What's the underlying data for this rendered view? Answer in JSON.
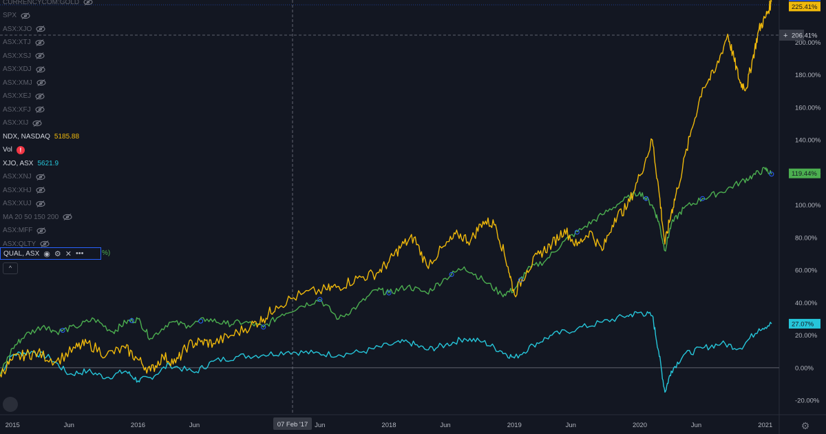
{
  "legend": {
    "rows": [
      {
        "name": "CURRENCYCOM:GOLD",
        "visible": false
      },
      {
        "name": "SPX",
        "visible": false
      },
      {
        "name": "ASX:XJO",
        "visible": false
      },
      {
        "name": "ASX:XTJ",
        "visible": false
      },
      {
        "name": "ASX:XSJ",
        "visible": false
      },
      {
        "name": "ASX:XDJ",
        "visible": false
      },
      {
        "name": "ASX:XMJ",
        "visible": false
      },
      {
        "name": "ASX:XEJ",
        "visible": false
      },
      {
        "name": "ASX:XFJ",
        "visible": false
      },
      {
        "name": "ASX:XIJ",
        "visible": false
      },
      {
        "name": "NDX, NASDAQ",
        "visible": true,
        "value": "5185.88",
        "color": "#f0b90b"
      },
      {
        "name": "Vol",
        "visible": true,
        "alert": "!"
      },
      {
        "name": "XJO, ASX",
        "visible": true,
        "value": "5621.9",
        "color": "#26c6da"
      },
      {
        "name": "ASX:XNJ",
        "visible": false
      },
      {
        "name": "ASX:XHJ",
        "visible": false
      },
      {
        "name": "ASX:XUJ",
        "visible": false
      },
      {
        "name": "MA 20 50 150 200",
        "visible": false
      },
      {
        "name": "ASX:MFF",
        "visible": false
      },
      {
        "name": "ASX:QLTY",
        "visible": false
      }
    ],
    "selected": {
      "name": "QUAL, ASX",
      "tail": "%)"
    },
    "collapse_label": "^"
  },
  "crosshair": {
    "date_label": "07 Feb '17",
    "price_label": "206.41%"
  },
  "chart_data": {
    "type": "line",
    "x_axis_labels": [
      "2015",
      "Jun",
      "2016",
      "Jun",
      "Jun",
      "2018",
      "Jun",
      "2019",
      "Jun",
      "2020",
      "Jun",
      "2021"
    ],
    "y_ticks": [
      "200.00%",
      "180.00%",
      "160.00%",
      "140.00%",
      "120.00%",
      "100.00%",
      "80.00%",
      "60.00%",
      "40.00%",
      "20.00%",
      "0.00%",
      "-20.00%"
    ],
    "ylim": [
      -28,
      226
    ],
    "xlim": [
      2014.9,
      2021.1
    ],
    "grid": false,
    "series": [
      {
        "name": "NDX, NASDAQ",
        "color": "#f0b90b",
        "last_label": "225.41%",
        "x": [
          2014.9,
          2015.0,
          2015.1,
          2015.2,
          2015.35,
          2015.5,
          2015.6,
          2015.75,
          2015.9,
          2016.0,
          2016.1,
          2016.2,
          2016.3,
          2016.4,
          2016.5,
          2016.6,
          2016.75,
          2016.9,
          2017.0,
          2017.1,
          2017.3,
          2017.5,
          2017.6,
          2017.75,
          2017.9,
          2018.0,
          2018.1,
          2018.2,
          2018.3,
          2018.45,
          2018.55,
          2018.65,
          2018.75,
          2018.85,
          2018.95,
          2019.0,
          2019.1,
          2019.2,
          2019.3,
          2019.4,
          2019.5,
          2019.6,
          2019.7,
          2019.8,
          2019.9,
          2020.0,
          2020.1,
          2020.15,
          2020.2,
          2020.25,
          2020.3,
          2020.4,
          2020.5,
          2020.6,
          2020.7,
          2020.75,
          2020.8,
          2020.85,
          2020.9,
          2020.95,
          2021.0,
          2021.05
        ],
        "values": [
          -4,
          5,
          8,
          9,
          4,
          12,
          15,
          8,
          12,
          5,
          -2,
          7,
          3,
          14,
          16,
          15,
          20,
          26,
          30,
          38,
          45,
          48,
          50,
          55,
          58,
          65,
          75,
          80,
          63,
          75,
          82,
          78,
          90,
          88,
          62,
          45,
          60,
          70,
          76,
          85,
          75,
          84,
          72,
          92,
          99,
          118,
          140,
          110,
          76,
          95,
          110,
          142,
          172,
          182,
          205,
          190,
          175,
          172,
          190,
          208,
          215,
          225
        ]
      },
      {
        "name": "QUAL, ASX",
        "color": "#4caf50",
        "last_label": "119.44%",
        "x": [
          2014.9,
          2015.0,
          2015.1,
          2015.25,
          2015.35,
          2015.5,
          2015.65,
          2015.8,
          2015.9,
          2016.0,
          2016.1,
          2016.25,
          2016.4,
          2016.55,
          2016.7,
          2016.85,
          2017.0,
          2017.15,
          2017.3,
          2017.45,
          2017.6,
          2017.75,
          2017.9,
          2018.0,
          2018.15,
          2018.3,
          2018.45,
          2018.6,
          2018.75,
          2018.9,
          2019.0,
          2019.1,
          2019.25,
          2019.4,
          2019.55,
          2019.7,
          2019.85,
          2020.0,
          2020.1,
          2020.15,
          2020.2,
          2020.25,
          2020.35,
          2020.5,
          2020.65,
          2020.8,
          2020.9,
          2021.0,
          2021.05
        ],
        "values": [
          -4,
          12,
          20,
          26,
          22,
          25,
          30,
          22,
          28,
          30,
          18,
          28,
          26,
          30,
          27,
          28,
          25,
          33,
          38,
          42,
          30,
          38,
          48,
          46,
          50,
          46,
          55,
          62,
          54,
          45,
          48,
          60,
          66,
          78,
          86,
          94,
          102,
          108,
          100,
          90,
          72,
          88,
          98,
          104,
          108,
          114,
          118,
          122,
          119
        ]
      },
      {
        "name": "XJO, ASX",
        "color": "#26c6da",
        "last_label": "27.07%",
        "x": [
          2014.9,
          2015.0,
          2015.15,
          2015.3,
          2015.45,
          2015.6,
          2015.75,
          2015.9,
          2016.0,
          2016.1,
          2016.25,
          2016.45,
          2016.6,
          2016.8,
          2017.0,
          2017.2,
          2017.4,
          2017.6,
          2017.8,
          2018.0,
          2018.15,
          2018.3,
          2018.45,
          2018.6,
          2018.75,
          2018.9,
          2019.0,
          2019.15,
          2019.3,
          2019.5,
          2019.7,
          2019.9,
          2020.0,
          2020.1,
          2020.15,
          2020.2,
          2020.25,
          2020.35,
          2020.5,
          2020.65,
          2020.8,
          2020.95,
          2021.05
        ],
        "values": [
          -4,
          8,
          10,
          6,
          -4,
          -2,
          -6,
          -2,
          -8,
          -6,
          2,
          -3,
          4,
          7,
          8,
          10,
          9,
          8,
          10,
          14,
          16,
          11,
          14,
          18,
          16,
          10,
          6,
          14,
          20,
          24,
          28,
          32,
          34,
          32,
          10,
          -15,
          -2,
          8,
          12,
          15,
          12,
          24,
          27
        ]
      }
    ]
  }
}
